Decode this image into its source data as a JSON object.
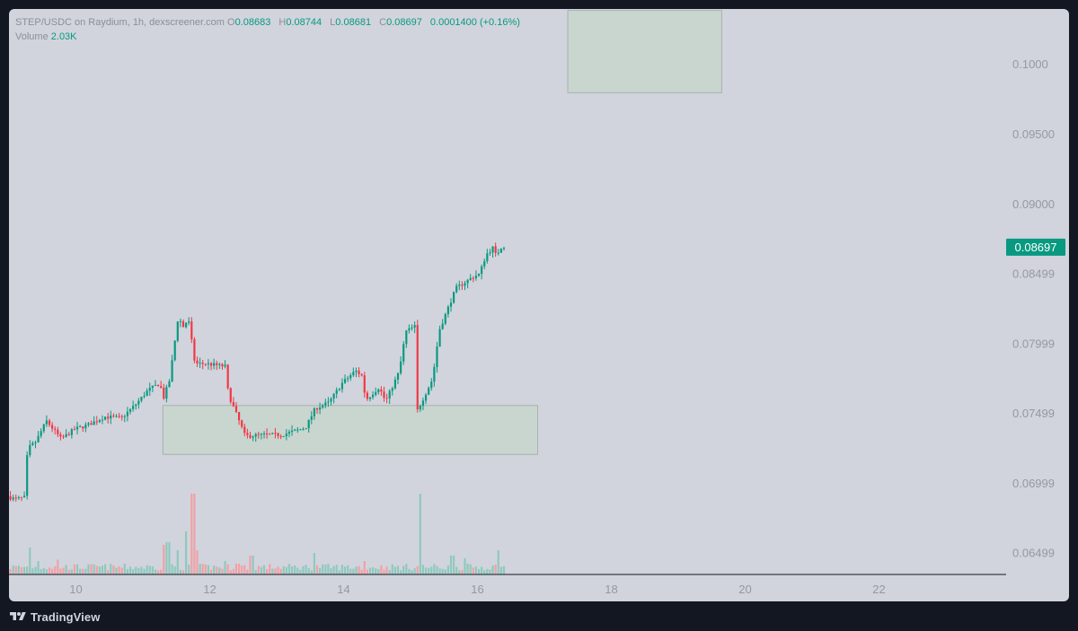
{
  "legend": {
    "symbol": "STEP/USDC on Raydium, 1h, dexscreener.com",
    "o_key": "O",
    "o": "0.08683",
    "h_key": "H",
    "h": "0.08744",
    "l_key": "L",
    "l": "0.08681",
    "c_key": "C",
    "c": "0.08697",
    "change": "0.0001400 (+0.16%)",
    "volume_label": "Volume",
    "volume_value": "2.03K"
  },
  "footer": {
    "brand": "TradingView"
  },
  "colors": {
    "up": "#089981",
    "down": "#f23645",
    "up_vol": "#8fc9bd",
    "down_vol": "#f1a1a7",
    "zone": "#c9d5cf"
  },
  "chart_data": {
    "type": "candlestick",
    "price_axis": {
      "ticks": [
        0.065,
        0.07,
        0.075,
        0.08,
        0.085,
        0.09,
        0.095,
        0.1
      ],
      "tick_labels": [
        "0.06499",
        "0.06999",
        "0.07499",
        "0.07999",
        "0.08499",
        "0.09000",
        "0.09500",
        "0.1000"
      ],
      "range": [
        0.0635,
        0.104
      ]
    },
    "time_axis": {
      "ticks": [
        10,
        12,
        14,
        16,
        18,
        20,
        22
      ],
      "tick_labels": [
        "10",
        "12",
        "14",
        "16",
        "18",
        "20",
        "22"
      ],
      "range": [
        9,
        23.9
      ]
    },
    "last_price": {
      "value": 0.08697,
      "label": "0.08697"
    },
    "zones": [
      {
        "x_from": 11.3,
        "x_to": 16.9,
        "y_from": 0.0721,
        "y_to": 0.0756
      },
      {
        "x_from": 17.35,
        "x_to": 19.65,
        "y_from": 0.098,
        "y_to": 0.1039
      }
    ],
    "path": [
      [
        9.0,
        0.0691
      ],
      [
        9.1,
        0.0689
      ],
      [
        9.25,
        0.069
      ],
      [
        9.3,
        0.0725
      ],
      [
        9.42,
        0.073
      ],
      [
        9.58,
        0.0745
      ],
      [
        9.8,
        0.0732
      ],
      [
        10.0,
        0.0739
      ],
      [
        10.2,
        0.0742
      ],
      [
        10.45,
        0.0748
      ],
      [
        10.7,
        0.0747
      ],
      [
        10.9,
        0.0756
      ],
      [
        11.1,
        0.0767
      ],
      [
        11.28,
        0.0772
      ],
      [
        11.32,
        0.076
      ],
      [
        11.42,
        0.0774
      ],
      [
        11.55,
        0.082
      ],
      [
        11.62,
        0.0812
      ],
      [
        11.7,
        0.0818
      ],
      [
        11.8,
        0.0786
      ],
      [
        11.95,
        0.0786
      ],
      [
        12.25,
        0.0784
      ],
      [
        12.3,
        0.0764
      ],
      [
        12.4,
        0.0752
      ],
      [
        12.55,
        0.0734
      ],
      [
        12.8,
        0.0735
      ],
      [
        13.1,
        0.0735
      ],
      [
        13.45,
        0.074
      ],
      [
        13.6,
        0.0754
      ],
      [
        13.8,
        0.0758
      ],
      [
        14.0,
        0.0772
      ],
      [
        14.2,
        0.0781
      ],
      [
        14.3,
        0.0777
      ],
      [
        14.35,
        0.076
      ],
      [
        14.55,
        0.0769
      ],
      [
        14.65,
        0.0759
      ],
      [
        14.85,
        0.078
      ],
      [
        14.95,
        0.0809
      ],
      [
        15.1,
        0.0813
      ],
      [
        15.12,
        0.0752
      ],
      [
        15.2,
        0.076
      ],
      [
        15.35,
        0.0775
      ],
      [
        15.45,
        0.081
      ],
      [
        15.7,
        0.084
      ],
      [
        15.95,
        0.0848
      ],
      [
        16.05,
        0.085
      ],
      [
        16.15,
        0.0864
      ],
      [
        16.25,
        0.0869
      ],
      [
        16.31,
        0.0862
      ],
      [
        16.35,
        0.0869
      ],
      [
        16.4,
        0.087
      ]
    ],
    "volume_spikes": [
      [
        9.3,
        1.0
      ],
      [
        9.42,
        0.5
      ],
      [
        9.7,
        0.55
      ],
      [
        11.3,
        1.1
      ],
      [
        11.35,
        1.2
      ],
      [
        11.5,
        0.9
      ],
      [
        11.62,
        1.6
      ],
      [
        11.72,
        3.0
      ],
      [
        11.8,
        0.9
      ],
      [
        12.2,
        0.5
      ],
      [
        12.4,
        0.4
      ],
      [
        12.6,
        0.7
      ],
      [
        13.55,
        0.8
      ],
      [
        14.3,
        0.5
      ],
      [
        15.12,
        3.0
      ],
      [
        15.6,
        0.7
      ],
      [
        15.8,
        0.6
      ],
      [
        16.3,
        0.9
      ]
    ]
  }
}
